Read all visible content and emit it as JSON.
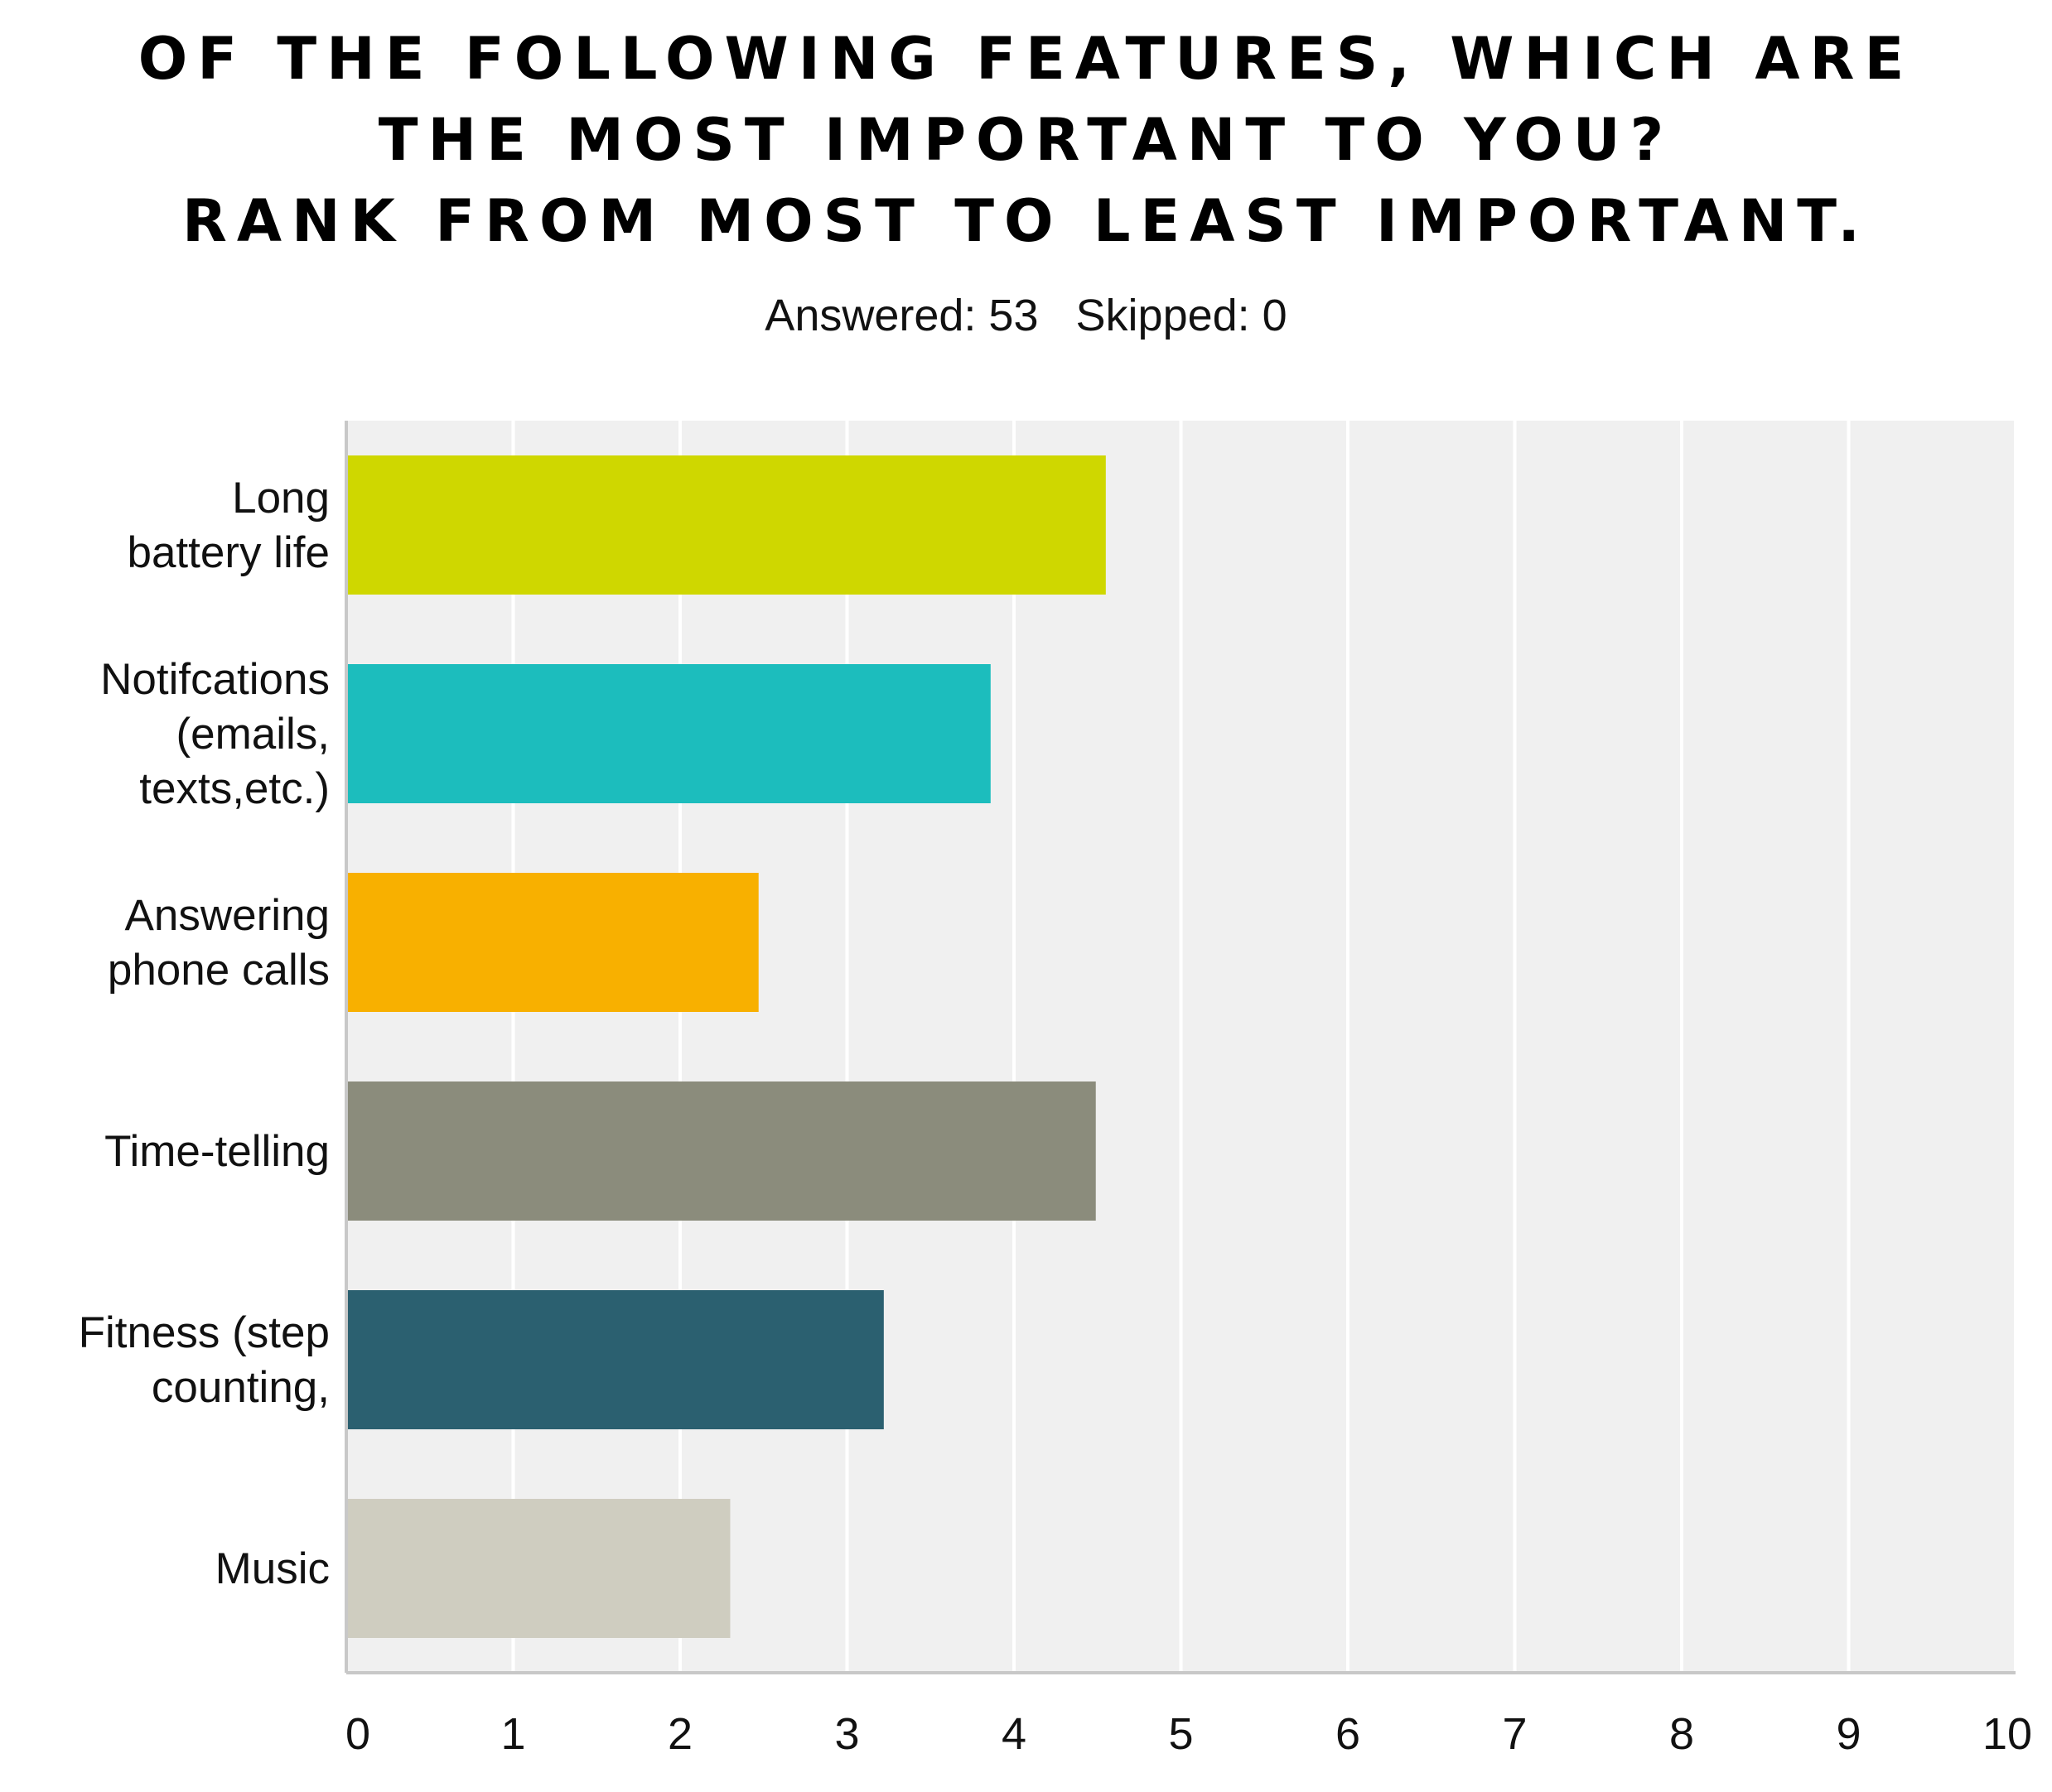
{
  "chart_data": {
    "type": "bar",
    "orientation": "horizontal",
    "title": [
      "OF THE FOLLOWING FEATURES, WHICH ARE",
      "THE MOST IMPORTANT TO YOU?",
      "RANK FROM MOST TO LEAST IMPORTANT."
    ],
    "subtitle": {
      "answered_label": "Answered: 53",
      "skipped_label": "Skipped: 0"
    },
    "categories": [
      [
        "Long",
        "battery life"
      ],
      [
        "Notifcations",
        "(emails,",
        "texts,etc.)"
      ],
      [
        "Answering",
        "phone calls"
      ],
      [
        "Time-telling"
      ],
      [
        "Fitness (step",
        "counting,"
      ],
      [
        "Music"
      ]
    ],
    "values": [
      4.55,
      3.86,
      2.47,
      4.49,
      3.22,
      2.3
    ],
    "colors": [
      "#cfd700",
      "#1cbdbd",
      "#f8b000",
      "#8b8c7c",
      "#2b6070",
      "#cfcdc0"
    ],
    "xlim": [
      0,
      10
    ],
    "xticks": [
      "0",
      "1",
      "2",
      "3",
      "4",
      "5",
      "6",
      "7",
      "8",
      "9",
      "10"
    ],
    "plot_background": "#f0f0f0",
    "grid": true
  }
}
